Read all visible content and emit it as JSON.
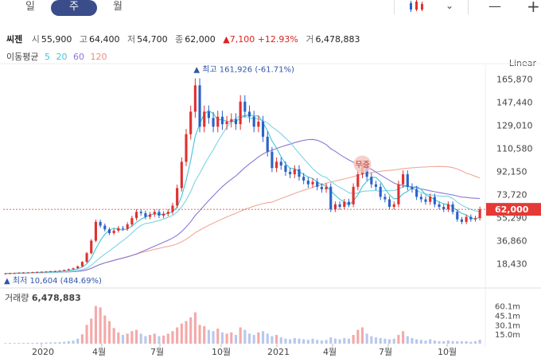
{
  "tabs": [
    {
      "label": "일",
      "active": false
    },
    {
      "label": "주",
      "active": true
    },
    {
      "label": "월",
      "active": false
    }
  ],
  "toolbar": {
    "candle_icon": "candlestick-icon",
    "dropdown_icon": "chevron-down-icon",
    "minus": "—",
    "plus": "+"
  },
  "stock": {
    "name": "씨젠",
    "open_label": "시",
    "open": "55,900",
    "high_label": "고",
    "high": "64,400",
    "low_label": "저",
    "low": "54,700",
    "close_label": "종",
    "close": "62,000",
    "change": "▲7,100 +12.93%",
    "volume_label": "거",
    "volume": "6,478,883"
  },
  "moving_avg": {
    "label": "이동평균",
    "p5": "5",
    "p20": "20",
    "p60": "60",
    "p120": "120"
  },
  "scale_label": "Linear",
  "colors": {
    "up": "#e03030",
    "down": "#2a62c8",
    "ma5": "#3fc6d8",
    "ma20": "#7ad4e6",
    "ma60": "#8b78d6",
    "ma120": "#f0a89a",
    "volume": "#b8c8ee",
    "volume_hi": "#f4a9a9"
  },
  "chart_data": {
    "type": "candlestick",
    "price_axis_ticks": [
      "165,870",
      "147,440",
      "129,010",
      "110,580",
      "92,150",
      "73,720",
      "55,290",
      "36,860",
      "18,430"
    ],
    "current_price_label": "62,000",
    "annotations": {
      "high": "최고 161,926 (-61.71%)",
      "low": "최저 10,604 (484.69%)",
      "marker": "무증"
    },
    "volume_title": "거래량",
    "volume_value": "6,478,883",
    "volume_axis_ticks": [
      "60.1m",
      "45.1m",
      "30.1m",
      "15.0m"
    ],
    "x_ticks": [
      "2020",
      "4월",
      "7월",
      "10월",
      "2021",
      "4월",
      "7월",
      "10월"
    ],
    "ylim": [
      10000,
      172000
    ],
    "volume_ylim": [
      0,
      66
    ],
    "closes": [
      10800,
      11000,
      11100,
      11300,
      11500,
      11600,
      11800,
      12000,
      12100,
      12300,
      12500,
      12700,
      13000,
      13500,
      14200,
      15000,
      16500,
      20000,
      27000,
      37000,
      52000,
      49000,
      46000,
      43000,
      45000,
      47000,
      46500,
      50000,
      55000,
      60000,
      59000,
      56000,
      58000,
      60000,
      57000,
      58500,
      60000,
      65000,
      79000,
      100000,
      122000,
      140000,
      161000,
      128000,
      140000,
      135000,
      128000,
      136000,
      130000,
      132000,
      134000,
      130000,
      148000,
      140000,
      136000,
      128000,
      132000,
      120000,
      108000,
      95000,
      100000,
      97000,
      92000,
      90000,
      94000,
      88000,
      85000,
      82000,
      84000,
      80000,
      78000,
      80000,
      62000,
      66000,
      64000,
      68000,
      66000,
      80000,
      90000,
      98000,
      88000,
      82000,
      80000,
      72000,
      70000,
      64000,
      66000,
      82000,
      90000,
      80000,
      78000,
      72000,
      70000,
      68000,
      72000,
      66000,
      64000,
      62000,
      66000,
      60000,
      54000,
      52000,
      56000,
      54000,
      55000,
      62000
    ],
    "volumes": [
      1.0,
      1.2,
      1.1,
      1.3,
      1.2,
      1.4,
      1.3,
      1.5,
      1.6,
      1.8,
      2.0,
      2.2,
      2.5,
      3.0,
      4.0,
      5.0,
      8.0,
      15.0,
      30.0,
      40.0,
      60.1,
      58.0,
      45.0,
      36.0,
      25.0,
      18.0,
      14.0,
      16.0,
      20.0,
      22.0,
      16.0,
      12.0,
      14.0,
      16.0,
      12.0,
      13.0,
      16.0,
      20.0,
      26.0,
      32.0,
      36.0,
      42.0,
      50.0,
      30.0,
      28.0,
      22.0,
      20.0,
      24.0,
      18.0,
      16.0,
      18.0,
      14.0,
      26.0,
      22.0,
      16.0,
      14.0,
      18.0,
      20.0,
      16.0,
      12.0,
      14.0,
      10.0,
      8.0,
      7.0,
      9.0,
      8.0,
      7.0,
      6.0,
      8.0,
      6.0,
      5.0,
      6.0,
      10.0,
      8.0,
      7.0,
      9.0,
      8.0,
      14.0,
      22.0,
      26.0,
      16.0,
      12.0,
      10.0,
      9.0,
      8.0,
      7.0,
      8.0,
      14.0,
      20.0,
      12.0,
      9.0,
      7.0,
      6.0,
      5.0,
      7.0,
      5.0,
      4.0,
      4.0,
      5.0,
      4.0,
      4.0,
      4.0,
      4.0,
      3.0,
      4.0,
      6.5
    ]
  }
}
